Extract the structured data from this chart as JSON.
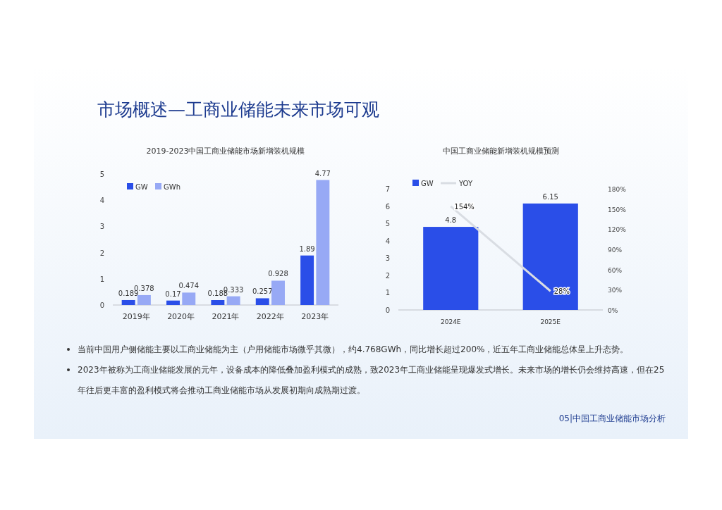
{
  "chart_data": [
    {
      "type": "bar",
      "title": "2019-2023中国工商业储能市场新增装机规模",
      "categories": [
        "2019年",
        "2020年",
        "2021年",
        "2022年",
        "2023年"
      ],
      "series": [
        {
          "name": "GW",
          "color": "#2a4ee8",
          "values": [
            0.189,
            0.17,
            0.188,
            0.257,
            1.89
          ]
        },
        {
          "name": "GWh",
          "color": "#97a9f5",
          "values": [
            0.378,
            0.474,
            0.333,
            0.928,
            4.77
          ]
        }
      ],
      "ylim": [
        0,
        5
      ],
      "yticks": [
        0,
        1,
        2,
        3,
        4,
        5
      ],
      "data_labels": true,
      "legend": "top left",
      "grid": false
    },
    {
      "type": "bar",
      "title": "中国工商业储能新增装机规模预测",
      "categories": [
        "2024E",
        "2025E"
      ],
      "series": [
        {
          "name": "GW",
          "color": "#2a4ee8",
          "values": [
            4.8,
            6.15
          ]
        },
        {
          "name": "YOY",
          "type": "line",
          "axis": "y2",
          "color": "#d9dde3",
          "values": [
            154,
            28
          ],
          "value_labels": [
            "154%",
            "28%"
          ]
        }
      ],
      "ylim": [
        0,
        7
      ],
      "yticks": [
        0,
        1,
        2,
        3,
        4,
        5,
        6,
        7
      ],
      "y2lim": [
        0,
        180
      ],
      "y2ticks": [
        {
          "value": 0,
          "label": "0%"
        },
        {
          "value": 30,
          "label": "30%"
        },
        {
          "value": 60,
          "label": "60%"
        },
        {
          "value": 90,
          "label": "90%"
        },
        {
          "value": 120,
          "label": "120%"
        },
        {
          "value": 150,
          "label": "150%"
        },
        {
          "value": 180,
          "label": "180%"
        }
      ],
      "data_labels": true,
      "legend": "top left",
      "marker": "none",
      "grid": false
    },
    {
      "type": "other",
      "title": "市场概述—工商业储能未来市场可观",
      "annotations": [
        "当前中国用户侧储能主要以工商业储能为主（户用储能市场微乎其微），约4.768GWh，同比增长超过200%，近五年工商业储能总体呈上升态势。",
        "2023年被称为工商业储能发展的元年，设备成本的降低叠加盈利模式的成熟，致2023年工商业储能呈现爆发式增长。未来市场的增长仍会维持高速，但在25年往后更丰富的盈利模式将会推动工商业储能市场从发展初期向成熟期过渡。",
        "05|中国工商业储能市场分析"
      ]
    }
  ]
}
